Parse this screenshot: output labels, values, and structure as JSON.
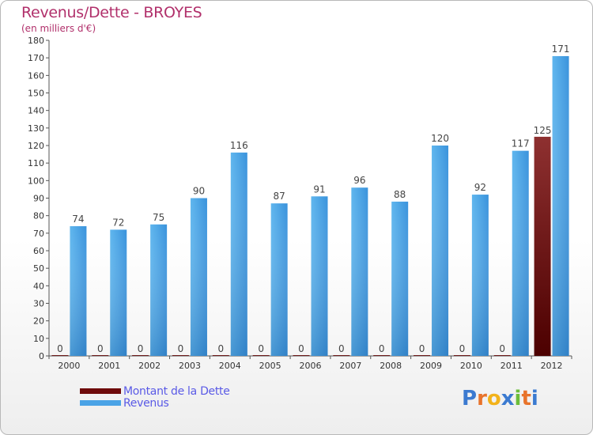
{
  "header": {
    "title": "Revenus/Dette - BROYES",
    "subtitle": "(en milliers d'€)"
  },
  "chart_data": {
    "type": "bar",
    "title": "Revenus/Dette - BROYES",
    "ylabel": "(en milliers d'€)",
    "xlabel": "",
    "ylim": [
      0,
      180
    ],
    "yticks": [
      0,
      10,
      20,
      30,
      40,
      50,
      60,
      70,
      80,
      90,
      100,
      110,
      120,
      130,
      140,
      150,
      160,
      170,
      180
    ],
    "grid": false,
    "legend_position": "bottom-left",
    "categories": [
      "2000",
      "2001",
      "2002",
      "2003",
      "2004",
      "2005",
      "2006",
      "2007",
      "2008",
      "2009",
      "2010",
      "2011",
      "2012"
    ],
    "series": [
      {
        "name": "Montant de la Dette",
        "color": "#6e0a0a",
        "values": [
          0,
          0,
          0,
          0,
          0,
          0,
          0,
          0,
          0,
          0,
          0,
          0,
          125
        ]
      },
      {
        "name": "Revenus",
        "color": "#4aa3e6",
        "values": [
          74,
          72,
          75,
          90,
          116,
          87,
          91,
          96,
          88,
          120,
          92,
          117,
          171
        ]
      }
    ]
  },
  "legend": {
    "items": [
      {
        "label": "Montant de la Dette",
        "color": "#6e0a0a"
      },
      {
        "label": "Revenus",
        "color": "#4aa3e6"
      }
    ]
  },
  "logo": {
    "letters": [
      "P",
      "r",
      "o",
      "x",
      "i",
      "t",
      "i"
    ],
    "colors": [
      "#3b7ad0",
      "#e8732b",
      "#f2b21a",
      "#3b7ad0",
      "#6cbd3a",
      "#e8732b",
      "#3b7ad0"
    ]
  }
}
